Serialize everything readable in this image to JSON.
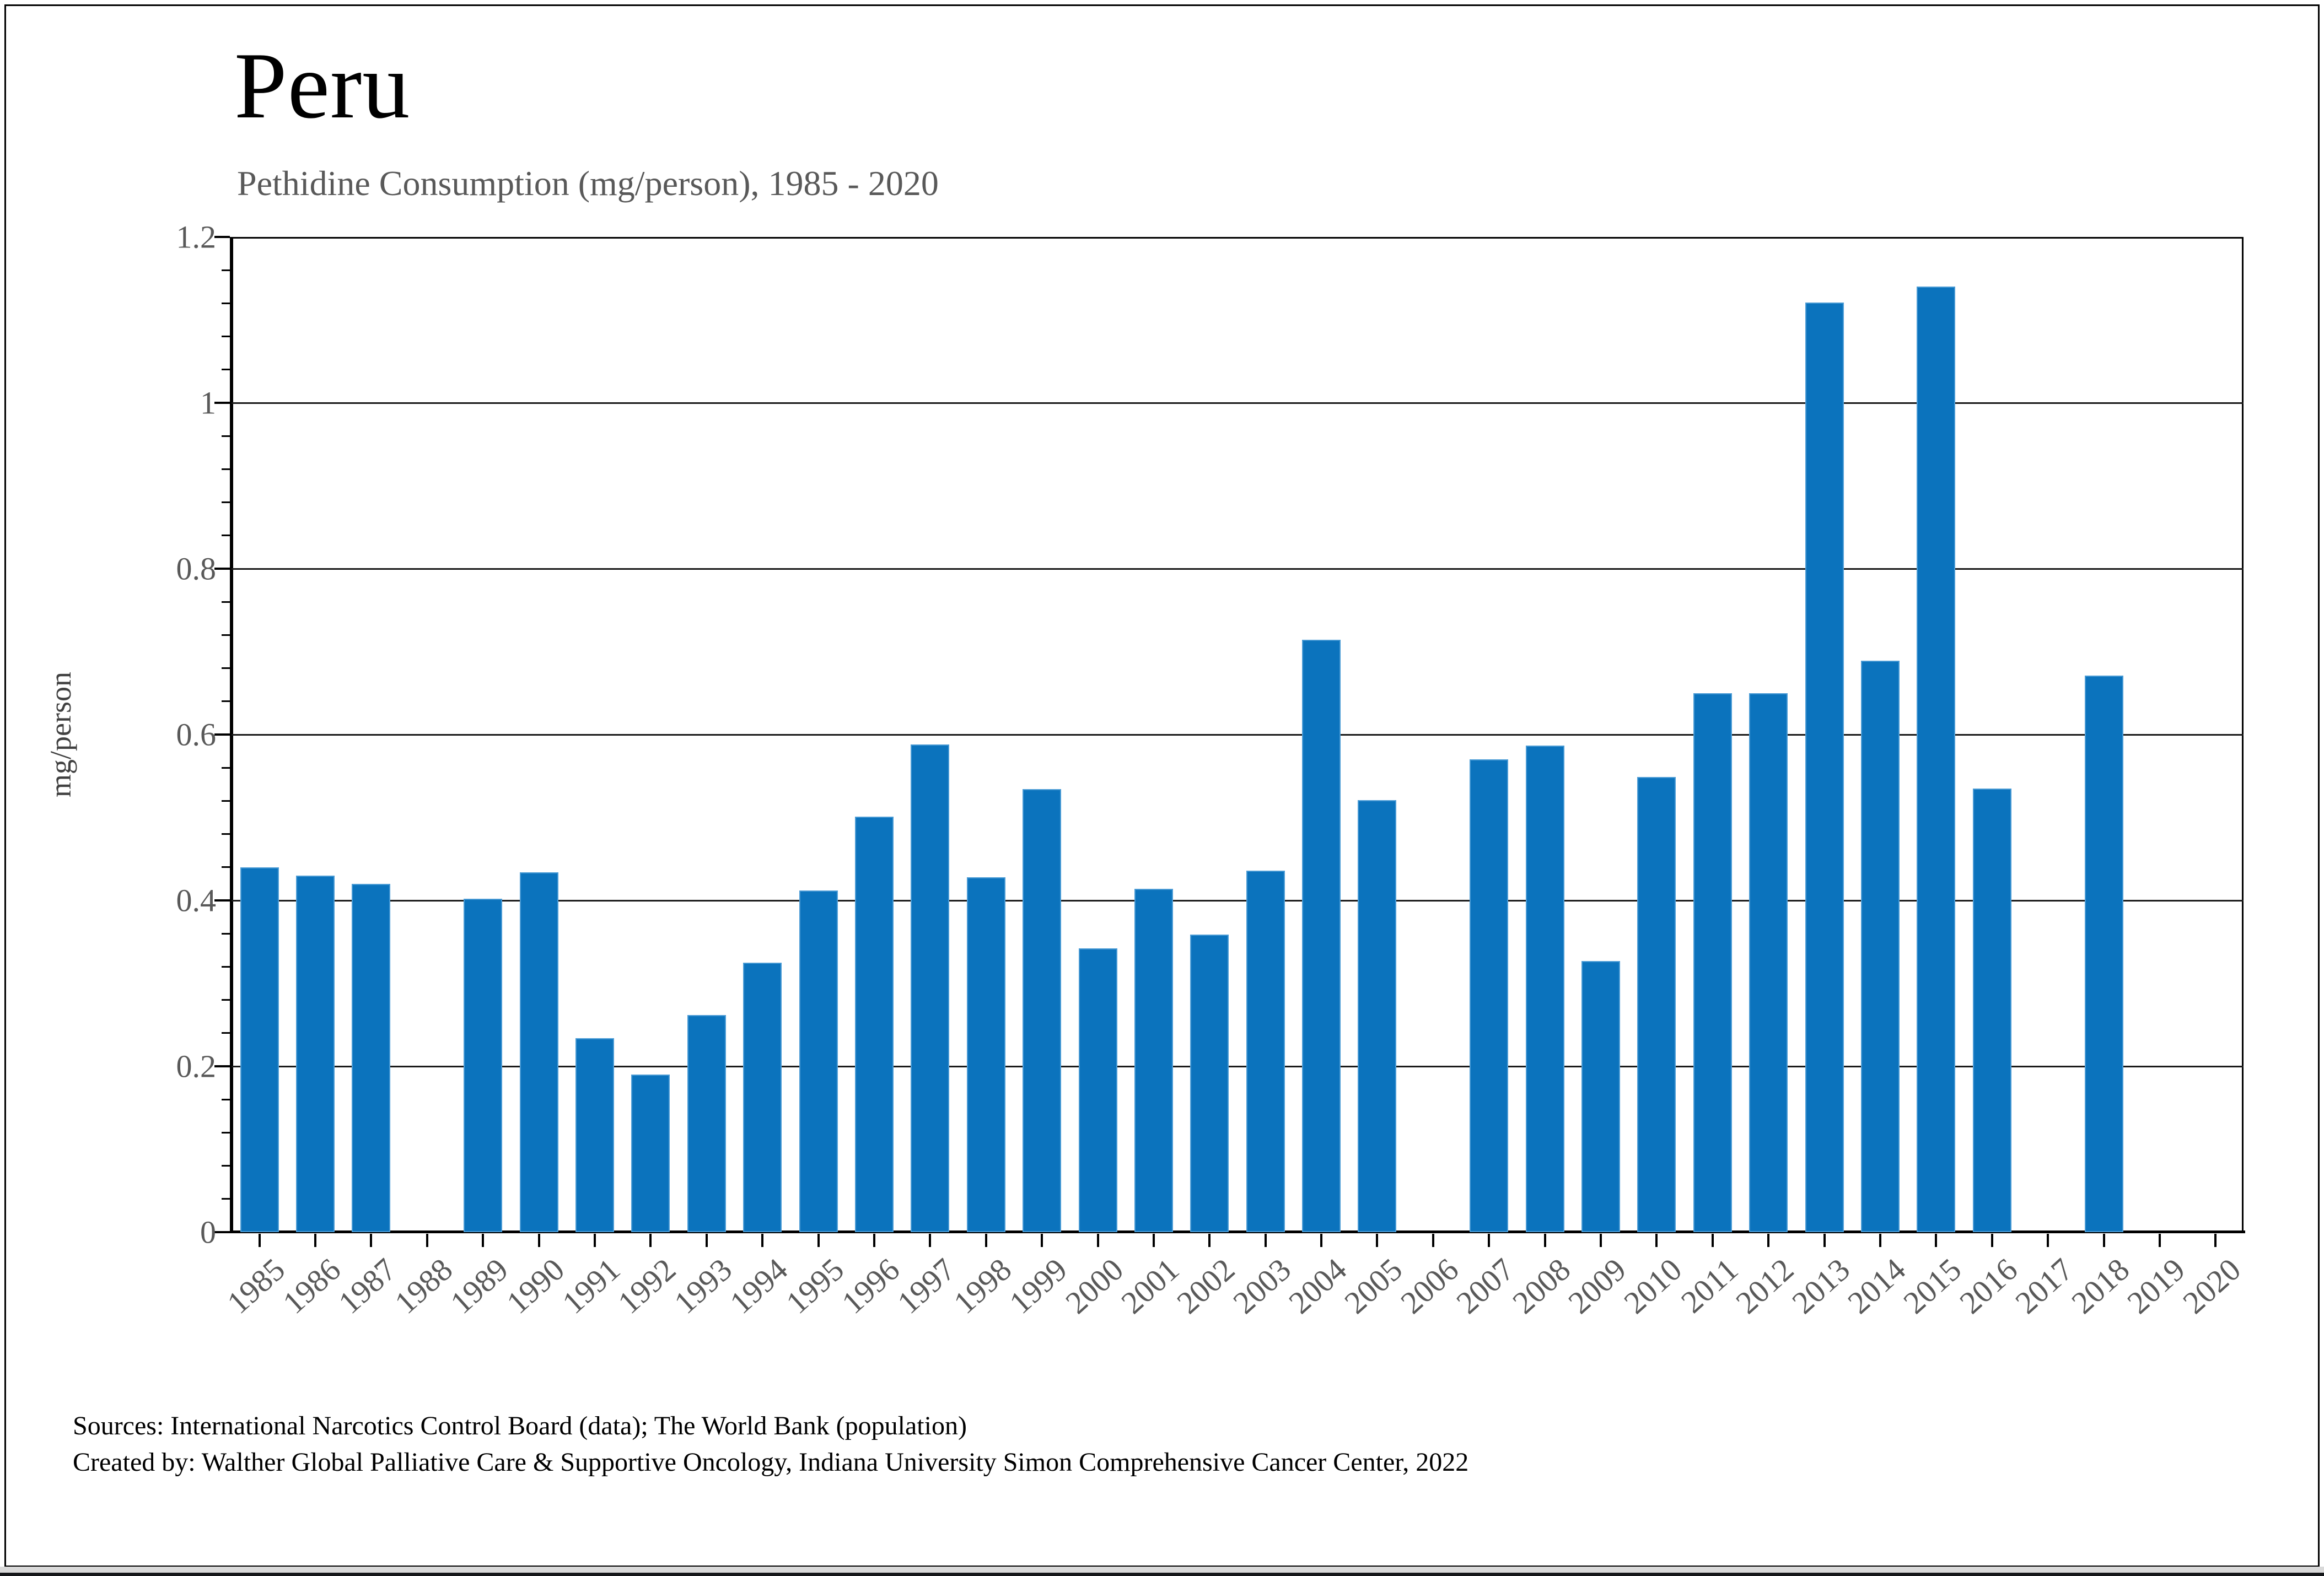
{
  "title": "Peru",
  "subtitle": "Pethidine Consumption (mg/person), 1985 - 2020",
  "ylabel": "mg/person",
  "sources_line1": "Sources: International Narcotics Control Board (data); The World Bank (population)",
  "sources_line2": "Created by: Walther Global Palliative Care & Supportive Oncology, Indiana University Simon Comprehensive Cancer Center, 2022",
  "chart_data": {
    "type": "bar",
    "title": "Peru",
    "subtitle": "Pethidine Consumption (mg/person), 1985 - 2020",
    "xlabel": "",
    "ylabel": "mg/person",
    "ylim": [
      0,
      1.2
    ],
    "ytick_step": 0.2,
    "ytick_labels": [
      "0",
      "0.2",
      "0.4",
      "0.6",
      "0.8",
      "1",
      "1.2"
    ],
    "y_minor_per_major": 5,
    "grid": true,
    "legend": "none",
    "bar_color": "#0b73bd",
    "bar_edge_color": "#4a9bd5",
    "axis_text_color": "#595959",
    "categories": [
      "1985",
      "1986",
      "1987",
      "1988",
      "1989",
      "1990",
      "1991",
      "1992",
      "1993",
      "1994",
      "1995",
      "1996",
      "1997",
      "1998",
      "1999",
      "2000",
      "2001",
      "2002",
      "2003",
      "2004",
      "2005",
      "2006",
      "2007",
      "2008",
      "2009",
      "2010",
      "2011",
      "2012",
      "2013",
      "2014",
      "2015",
      "2016",
      "2017",
      "2018",
      "2019",
      "2020"
    ],
    "values": [
      0.44,
      0.43,
      0.42,
      0,
      0.402,
      0.434,
      0.234,
      0.19,
      0.262,
      0.325,
      0.412,
      0.501,
      0.588,
      0.428,
      0.534,
      0.342,
      0.414,
      0.359,
      0.436,
      0.714,
      0.521,
      0,
      0.57,
      0.587,
      0.327,
      0.549,
      0.65,
      0.65,
      1.121,
      0.689,
      1.14,
      0.535,
      0,
      0.671,
      0,
      0
    ]
  }
}
